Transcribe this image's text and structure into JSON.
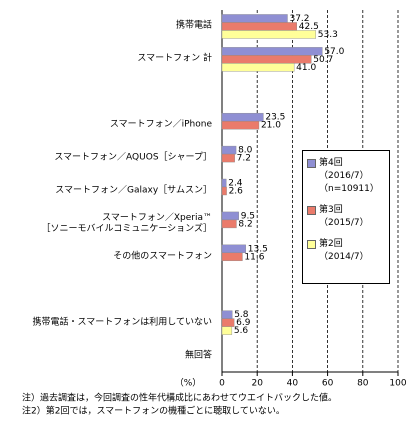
{
  "chart_data": {
    "type": "bar",
    "orientation": "horizontal",
    "categories": [
      "携帯電話",
      "スマートフォン 計",
      null,
      "スマートフォン／iPhone",
      "スマートフォン／AQUOS［シャープ］",
      "スマートフォン／Galaxy［サムスン］",
      "スマートフォン／Xperia™\n［ソニーモバイルコミュニケーションズ］",
      "その他のスマートフォン",
      null,
      "携帯電話・スマートフォンは利用していない",
      "無回答"
    ],
    "series": [
      {
        "name": "第4回\n（2016/7）\n（n=10911）",
        "color": "#8f8fd3",
        "values": [
          37.2,
          57.0,
          null,
          23.5,
          8.0,
          2.4,
          9.5,
          13.5,
          null,
          5.8,
          null
        ],
        "value_labels": [
          "37.2",
          "57.0",
          null,
          "23.5",
          "8.0",
          "2.4",
          "9.5",
          "13.5",
          null,
          "5.8",
          null
        ]
      },
      {
        "name": "第3回\n（2015/7）",
        "color": "#ea7b6b",
        "values": [
          42.5,
          50.7,
          null,
          21.0,
          7.2,
          2.6,
          8.2,
          11.6,
          null,
          6.9,
          null
        ],
        "value_labels": [
          "42.5",
          "50.7",
          null,
          "21.0",
          "7.2",
          "2.6",
          "8.2",
          "11.6",
          null,
          "6.9",
          null
        ]
      },
      {
        "name": "第2回\n（2014/7）",
        "color": "#ffff99",
        "values": [
          53.3,
          41.0,
          null,
          null,
          null,
          null,
          null,
          null,
          null,
          5.6,
          null
        ],
        "value_labels": [
          "53.3",
          "41.0",
          null,
          null,
          null,
          null,
          null,
          null,
          null,
          "5.6",
          null
        ]
      }
    ],
    "x_label": "（%）",
    "xlim": [
      0,
      100
    ],
    "xticks": [
      0,
      20,
      40,
      60,
      80,
      100
    ],
    "grid": true,
    "notes": [
      "注）過去調査は，今回調査の性年代構成比にあわせてウエイトバックした値。",
      "注2）第2回では，スマートフォンの機種ごとに聴取していない。"
    ]
  }
}
